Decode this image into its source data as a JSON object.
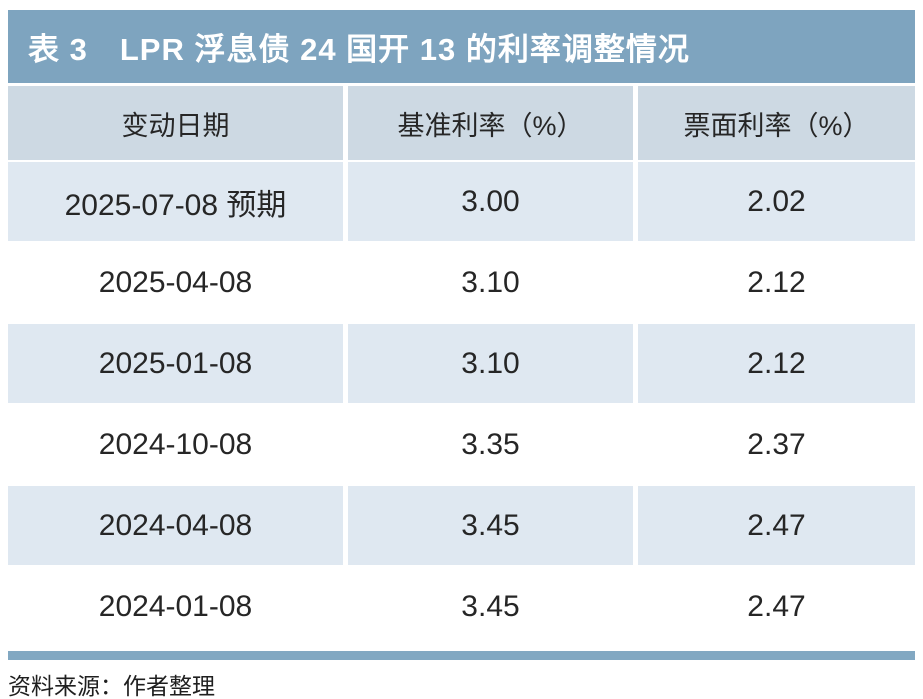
{
  "title_bar": {
    "label": "表 3　LPR 浮息债 24 国开 13 的利率调整情况"
  },
  "table": {
    "columns": [
      {
        "label": "变动日期"
      },
      {
        "label": "基准利率（%）"
      },
      {
        "label": "票面利率（%）"
      }
    ],
    "rows": [
      {
        "date": "2025-07-08 预期",
        "benchmark": "3.00",
        "coupon": "2.02"
      },
      {
        "date": "2025-04-08",
        "benchmark": "3.10",
        "coupon": "2.12"
      },
      {
        "date": "2025-01-08",
        "benchmark": "3.10",
        "coupon": "2.12"
      },
      {
        "date": "2024-10-08",
        "benchmark": "3.35",
        "coupon": "2.37"
      },
      {
        "date": "2024-04-08",
        "benchmark": "3.45",
        "coupon": "2.47"
      },
      {
        "date": "2024-01-08",
        "benchmark": "3.45",
        "coupon": "2.47"
      }
    ]
  },
  "footer": {
    "source_note": "资料来源：作者整理"
  },
  "colors": {
    "accent_blue": "#7ea4bf",
    "divider_blue": "#82a8c2",
    "header_bg": "#cdd9e3",
    "row_shade_bg": "#dfe8f1",
    "row_plain_bg": "#ffffff",
    "body_text": "#262626",
    "title_text": "#ffffff"
  }
}
